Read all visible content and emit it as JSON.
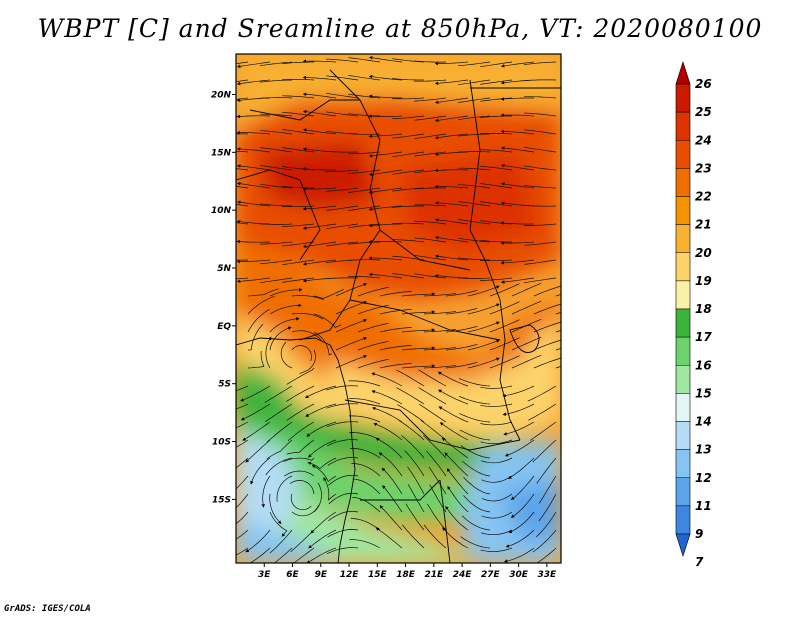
{
  "title": "WBPT [C] and Sreamline at 850hPa, VT: 2020080100",
  "credit": "GrADS: IGES/COLA",
  "map": {
    "lat_ticks": [
      "20N",
      "15N",
      "10N",
      "5N",
      "EQ",
      "5S",
      "10S",
      "15S"
    ],
    "lon_ticks": [
      "3E",
      "6E",
      "9E",
      "12E",
      "15E",
      "18E",
      "21E",
      "24E",
      "27E",
      "30E",
      "33E"
    ],
    "lon_range": [
      0,
      34.5
    ],
    "lat_range": [
      -20.5,
      23.5
    ]
  },
  "colorbar": {
    "levels": [
      "26",
      "25",
      "24",
      "23",
      "22",
      "21",
      "20",
      "19",
      "18",
      "17",
      "16",
      "15",
      "14",
      "13",
      "12",
      "11",
      "9",
      "7"
    ],
    "colors": [
      "#b00000",
      "#cc1a00",
      "#dd3300",
      "#e84d00",
      "#f06e00",
      "#f59200",
      "#f8b030",
      "#fcd36a",
      "#fbf0a8",
      "#3cb43c",
      "#6cd36c",
      "#a0e6a0",
      "#e4f6f4",
      "#b4dcf6",
      "#86c4f2",
      "#5ca4ea",
      "#3c88e0",
      "#2064d4"
    ]
  }
}
